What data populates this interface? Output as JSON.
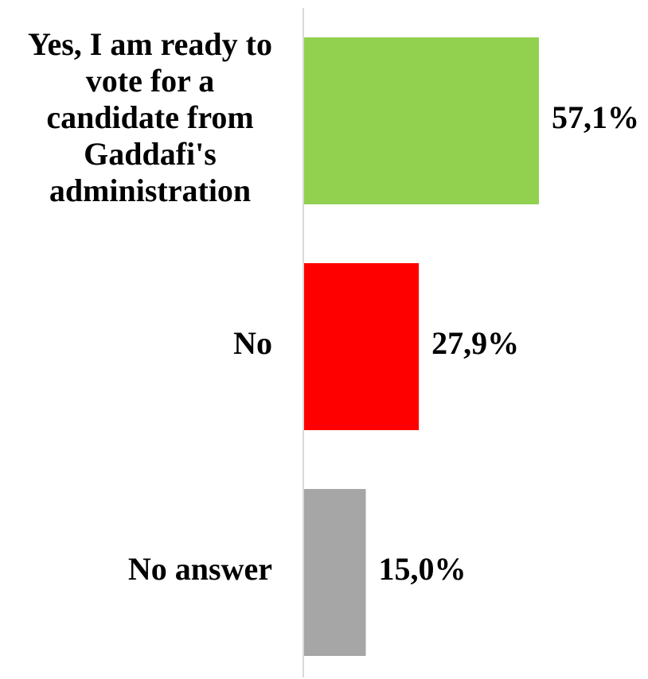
{
  "chart_data": {
    "type": "bar",
    "orientation": "horizontal",
    "title": "",
    "xlabel": "",
    "ylabel": "",
    "categories": [
      "Yes, I am ready to vote for a candidate from Gaddafi's administration",
      "No",
      "No answer"
    ],
    "category_lines": [
      [
        "Yes, I am ready to",
        "vote for a",
        "candidate from",
        "Gaddafi's",
        "administration"
      ],
      [
        "No"
      ],
      [
        "No answer"
      ]
    ],
    "values": [
      57.1,
      27.9,
      15.0
    ],
    "value_labels": [
      "57,1%",
      "27,9%",
      "15,0%"
    ],
    "colors": [
      "#92d050",
      "#ff0000",
      "#a6a6a6"
    ],
    "axis_color": "#d9d9d9",
    "xlim": [
      0,
      100
    ],
    "grid": false,
    "legend": "none"
  }
}
